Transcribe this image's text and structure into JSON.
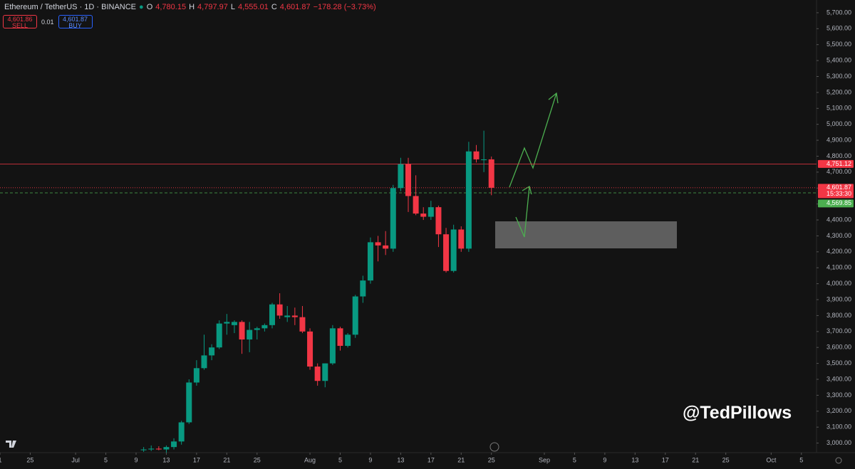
{
  "chart_data": {
    "type": "candlestick",
    "title": "Ethereum / TetherUS · 1D · BINANCE",
    "legend": {
      "o_label": "O",
      "open": "4,780.15",
      "h_label": "H",
      "high": "4,797.97",
      "l_label": "L",
      "low": "4,555.01",
      "c_label": "C",
      "close": "4,601.87",
      "change": "−178.28 (−3.73%)"
    },
    "trade": {
      "sell_price": "4,601.86",
      "sell": "SELL",
      "spread": "0.01",
      "buy_price": "4,601.87",
      "buy": "BUY"
    },
    "watermark": "@TedPillows",
    "color_up": "#089981",
    "color_down": "#f23645",
    "x": [
      "07-10",
      "07-11",
      "07-12",
      "07-13",
      "07-14",
      "07-15",
      "07-16",
      "07-17",
      "07-18",
      "07-19",
      "07-20",
      "07-21",
      "07-22",
      "07-23",
      "07-24",
      "07-25",
      "07-26",
      "07-27",
      "07-28",
      "07-29",
      "07-30",
      "07-31",
      "08-01",
      "08-02",
      "08-03",
      "08-04",
      "08-05",
      "08-06",
      "08-07",
      "08-08",
      "08-09",
      "08-10",
      "08-11",
      "08-12",
      "08-13",
      "08-14",
      "08-15",
      "08-16",
      "08-17",
      "08-18",
      "08-19",
      "08-20",
      "08-21",
      "08-22",
      "08-23",
      "08-24",
      "08-25"
    ],
    "open": [
      2955,
      2960,
      2965,
      2960,
      2975,
      3010,
      3130,
      3380,
      3470,
      3550,
      3600,
      3750,
      3740,
      3760,
      3650,
      3710,
      3720,
      3740,
      3870,
      3790,
      3800,
      3790,
      3700,
      3480,
      3390,
      3500,
      3720,
      3610,
      3680,
      3920,
      4020,
      4260,
      4240,
      4220,
      4600,
      4750,
      4550,
      4440,
      4420,
      4480,
      4310,
      4080,
      4340,
      4220,
      4830,
      4775,
      4780.15
    ],
    "high": [
      2975,
      2985,
      2980,
      2985,
      3030,
      3140,
      3400,
      3520,
      3680,
      3620,
      3770,
      3810,
      3770,
      3770,
      3760,
      3730,
      3750,
      3880,
      3940,
      3860,
      3850,
      3860,
      3720,
      3500,
      3500,
      3740,
      3730,
      3690,
      3930,
      4050,
      4290,
      4300,
      4330,
      4620,
      4790,
      4790,
      4680,
      4480,
      4520,
      4490,
      4350,
      4370,
      4360,
      4890,
      4870,
      4960,
      4797.97
    ],
    "low": [
      2945,
      2950,
      2955,
      2940,
      2960,
      2990,
      3120,
      3360,
      3460,
      3520,
      3590,
      3680,
      3690,
      3560,
      3570,
      3650,
      3700,
      3720,
      3780,
      3760,
      3740,
      3690,
      3460,
      3360,
      3350,
      3490,
      3580,
      3600,
      3660,
      3880,
      4000,
      4140,
      4180,
      4200,
      4580,
      4450,
      4430,
      4400,
      4400,
      4230,
      4070,
      4070,
      4200,
      4200,
      4760,
      4700,
      4555.01
    ],
    "close": [
      2960,
      2965,
      2960,
      2975,
      3010,
      3130,
      3380,
      3470,
      3550,
      3600,
      3750,
      3760,
      3760,
      3650,
      3710,
      3720,
      3740,
      3870,
      3800,
      3800,
      3790,
      3700,
      3480,
      3390,
      3500,
      3720,
      3610,
      3680,
      3920,
      4020,
      4260,
      4240,
      4220,
      4600,
      4750,
      4550,
      4440,
      4420,
      4480,
      4310,
      4080,
      4340,
      4220,
      4830,
      4780,
      4780.15,
      4601.87
    ],
    "xlim": [
      "06-21",
      "10-07"
    ],
    "xticks": [
      {
        "value": "06-21",
        "label": "1"
      },
      {
        "value": "06-25",
        "label": "25"
      },
      {
        "value": "07-01",
        "label": "Jul"
      },
      {
        "value": "07-05",
        "label": "5"
      },
      {
        "value": "07-09",
        "label": "9"
      },
      {
        "value": "07-13",
        "label": "13"
      },
      {
        "value": "07-17",
        "label": "17"
      },
      {
        "value": "07-21",
        "label": "21"
      },
      {
        "value": "07-25",
        "label": "25"
      },
      {
        "value": "08-01",
        "label": "Aug"
      },
      {
        "value": "08-05",
        "label": "5"
      },
      {
        "value": "08-09",
        "label": "9"
      },
      {
        "value": "08-13",
        "label": "13"
      },
      {
        "value": "08-17",
        "label": "17"
      },
      {
        "value": "08-21",
        "label": "21"
      },
      {
        "value": "08-25",
        "label": "25"
      },
      {
        "value": "09-01",
        "label": "Sep"
      },
      {
        "value": "09-05",
        "label": "5"
      },
      {
        "value": "09-09",
        "label": "9"
      },
      {
        "value": "09-13",
        "label": "13"
      },
      {
        "value": "09-17",
        "label": "17"
      },
      {
        "value": "09-21",
        "label": "21"
      },
      {
        "value": "09-25",
        "label": "25"
      },
      {
        "value": "10-01",
        "label": "Oct"
      },
      {
        "value": "10-05",
        "label": "5"
      }
    ],
    "ylim": [
      2940,
      5780
    ],
    "yticks": [
      {
        "value": 3000,
        "label": "3,000.00"
      },
      {
        "value": 3100,
        "label": "3,100.00"
      },
      {
        "value": 3200,
        "label": "3,200.00"
      },
      {
        "value": 3300,
        "label": "3,300.00"
      },
      {
        "value": 3400,
        "label": "3,400.00"
      },
      {
        "value": 3500,
        "label": "3,500.00"
      },
      {
        "value": 3600,
        "label": "3,600.00"
      },
      {
        "value": 3700,
        "label": "3,700.00"
      },
      {
        "value": 3800,
        "label": "3,800.00"
      },
      {
        "value": 3900,
        "label": "3,900.00"
      },
      {
        "value": 4000,
        "label": "4,000.00"
      },
      {
        "value": 4100,
        "label": "4,100.00"
      },
      {
        "value": 4200,
        "label": "4,200.00"
      },
      {
        "value": 4300,
        "label": "4,300.00"
      },
      {
        "value": 4400,
        "label": "4,400.00"
      },
      {
        "value": 4500,
        "label": "4,500.00"
      },
      {
        "value": 4600,
        "label": "4,600.00"
      },
      {
        "value": 4700,
        "label": "4,700.00"
      },
      {
        "value": 4800,
        "label": "4,800.00"
      },
      {
        "value": 4900,
        "label": "4,900.00"
      },
      {
        "value": 5000,
        "label": "5,000.00"
      },
      {
        "value": 5100,
        "label": "5,100.00"
      },
      {
        "value": 5200,
        "label": "5,200.00"
      },
      {
        "value": 5300,
        "label": "5,300.00"
      },
      {
        "value": 5400,
        "label": "5,400.00"
      },
      {
        "value": 5500,
        "label": "5,500.00"
      },
      {
        "value": 5600,
        "label": "5,600.00"
      },
      {
        "value": 5700,
        "label": "5,700.00"
      }
    ],
    "price_lines": [
      {
        "value": 4751.12,
        "label": "4,751.12",
        "color": "#f23645",
        "style": "solid"
      },
      {
        "value": 4601.87,
        "label": "4,601.87",
        "color": "#f23645",
        "style": "dotted",
        "countdown": "15:33:30"
      },
      {
        "value": 4569.85,
        "label": "4,569.85",
        "color": "#4caf50",
        "style": "dashed"
      }
    ]
  }
}
